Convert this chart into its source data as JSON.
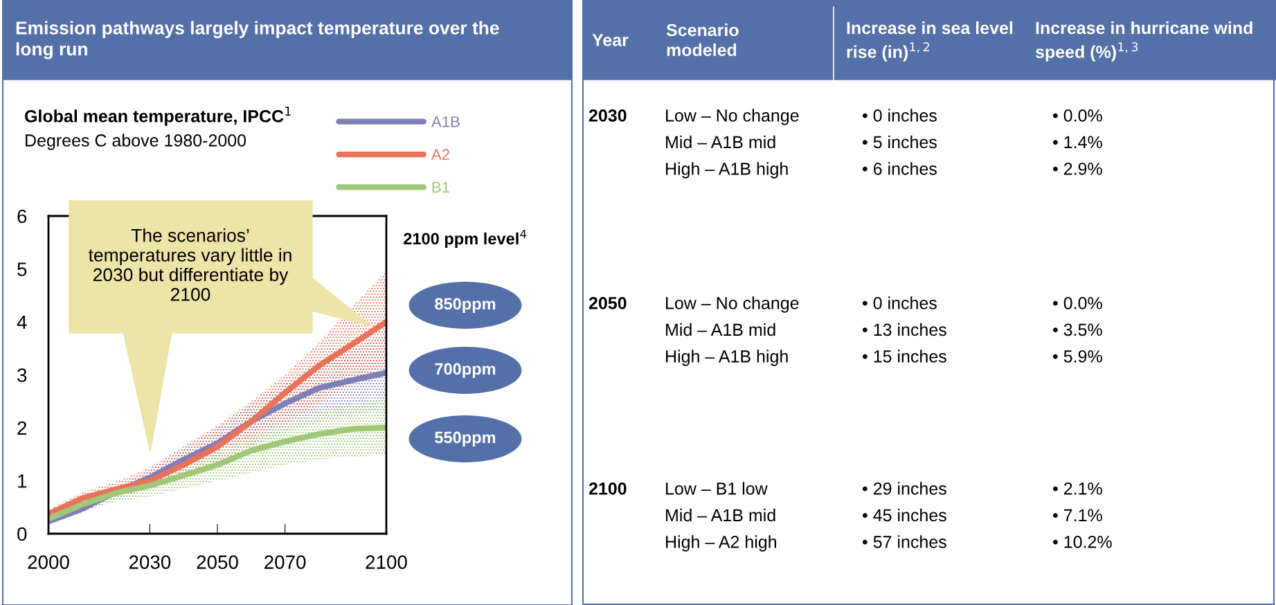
{
  "chart_data": [
    {
      "type": "line",
      "title": "Emission pathways largely impact temperature over the long run",
      "subtitle": "Global mean temperature, IPCC$^{1}$",
      "ylabel": "Degrees C above 1980-2000",
      "x": [
        2000,
        2010,
        2020,
        2030,
        2040,
        2050,
        2060,
        2070,
        2080,
        2090,
        2100
      ],
      "series": [
        {
          "name": "A1B",
          "color": "#8080b8",
          "values": [
            0.23,
            0.47,
            0.79,
            1.06,
            1.4,
            1.71,
            2.12,
            2.46,
            2.75,
            2.9,
            3.04
          ],
          "lower": [
            0.18,
            0.4,
            0.65,
            0.85,
            1.1,
            1.35,
            1.65,
            1.9,
            2.1,
            2.25,
            2.35
          ],
          "upper": [
            0.3,
            0.55,
            0.9,
            1.2,
            1.6,
            2.0,
            2.45,
            2.85,
            3.2,
            3.5,
            3.75
          ]
        },
        {
          "name": "A2",
          "color": "#e8735a",
          "values": [
            0.37,
            0.67,
            0.84,
            1.0,
            1.3,
            1.64,
            2.12,
            2.66,
            3.17,
            3.58,
            4.0
          ],
          "lower": [
            0.3,
            0.55,
            0.72,
            0.85,
            1.05,
            1.3,
            1.65,
            2.05,
            2.45,
            2.85,
            3.2
          ],
          "upper": [
            0.45,
            0.78,
            0.98,
            1.25,
            1.65,
            2.05,
            2.5,
            3.0,
            3.6,
            4.3,
            4.95
          ]
        },
        {
          "name": "B1",
          "color": "#a0c878",
          "values": [
            0.28,
            0.55,
            0.77,
            0.91,
            1.1,
            1.3,
            1.57,
            1.74,
            1.88,
            1.98,
            2.0
          ],
          "lower": [
            0.2,
            0.45,
            0.6,
            0.7,
            0.85,
            1.0,
            1.15,
            1.3,
            1.4,
            1.45,
            1.5
          ],
          "upper": [
            0.35,
            0.62,
            0.85,
            1.05,
            1.3,
            1.55,
            1.85,
            2.1,
            2.3,
            2.45,
            2.55
          ]
        }
      ],
      "xlim": [
        2000,
        2100
      ],
      "xticks": [
        2000,
        2030,
        2050,
        2070,
        2100
      ],
      "ylim": [
        0,
        6
      ],
      "yticks": [
        0,
        1,
        2,
        3,
        4,
        5,
        6
      ],
      "legend": "top right",
      "line_style": "solid",
      "annotations": [
        "The scenarios’ temperatures vary little in 2030 but differentiate by 2100",
        "2100 ppm level$^{4}$",
        "850ppm",
        "700ppm",
        "550ppm"
      ]
    },
    {
      "type": "other",
      "annotations": [
        "Year",
        "Scenario modeled",
        "Increase in sea level rise (in)$^{1,2}$",
        "Increase in hurricane wind speed (%)$^{1,3}$",
        "2030",
        "Low – No change",
        "Mid – A1B mid",
        "High – A1B high",
        "• 0 inches",
        "• 5 inches",
        "• 6 inches",
        "• 0.0%",
        "• 1.4%",
        "• 2.9%",
        "2050",
        "Low – No change",
        "Mid – A1B mid",
        "High – A1B high",
        "• 0 inches",
        "• 13 inches",
        "• 15 inches",
        "• 0.0%",
        "• 3.5%",
        "• 5.9%",
        "2100",
        "Low – B1 low",
        "Mid – A1B mid",
        "High – A2 high",
        "• 29 inches",
        "• 45 inches",
        "• 57 inches",
        "• 2.1%",
        "• 7.1%",
        "• 10.2%"
      ]
    }
  ]
}
